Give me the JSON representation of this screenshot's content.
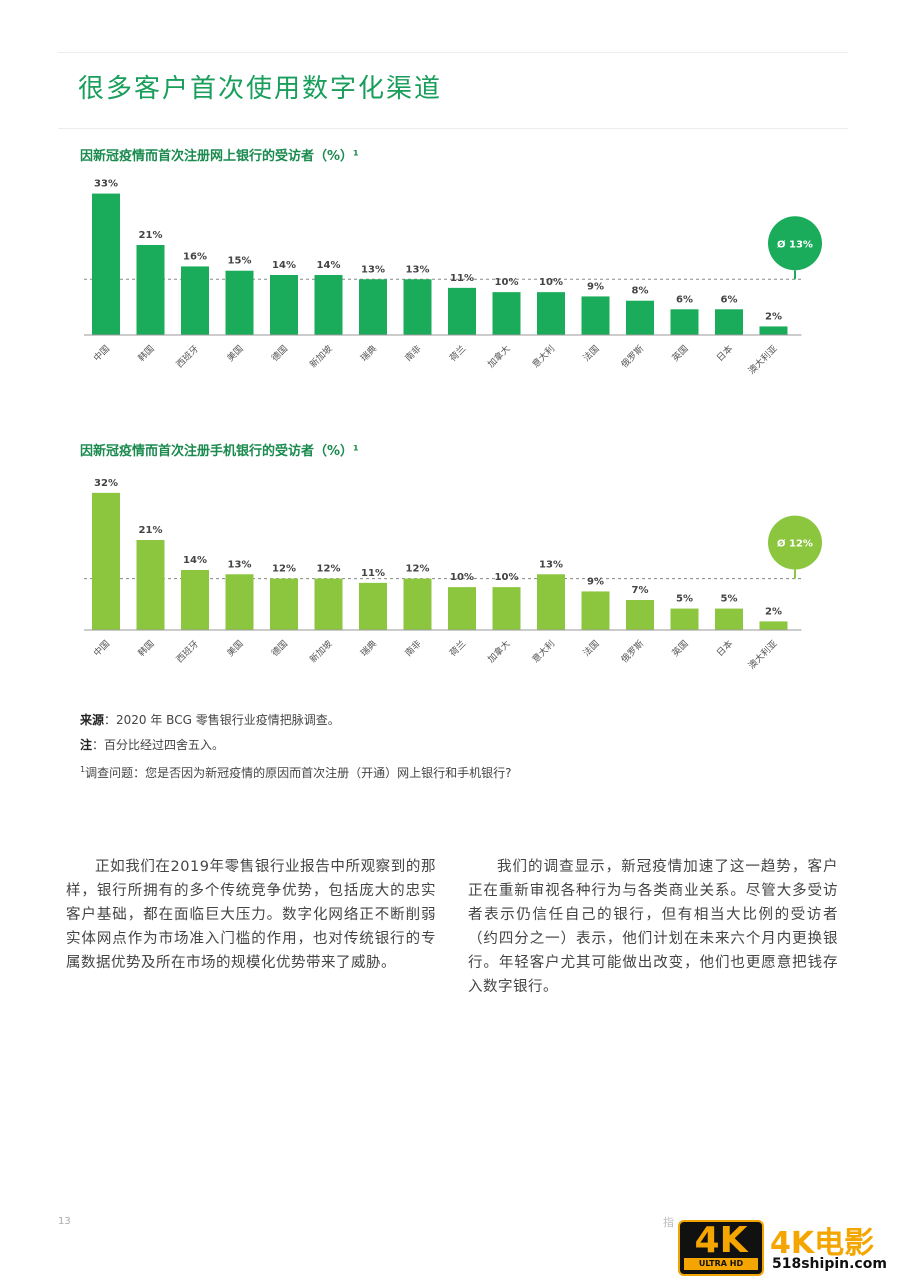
{
  "page": {
    "title": "很多客户首次使用数字化渠道",
    "page_number": "13"
  },
  "charts_meta": {
    "online": {
      "title": "因新冠疫情而首次注册网上银行的受访者（%）¹"
    },
    "mobile": {
      "title": "因新冠疫情而首次注册手机银行的受访者（%）¹"
    }
  },
  "chart_data": [
    {
      "type": "bar",
      "title": "因新冠疫情而首次注册网上银行的受访者（%）¹",
      "categories": [
        "中国",
        "韩国",
        "西班牙",
        "美国",
        "德国",
        "新加坡",
        "瑞典",
        "南非",
        "荷兰",
        "加拿大",
        "意大利",
        "法国",
        "俄罗斯",
        "英国",
        "日本",
        "澳大利亚"
      ],
      "values": [
        33,
        21,
        16,
        15,
        14,
        14,
        13,
        13,
        11,
        10,
        10,
        9,
        8,
        6,
        6,
        2
      ],
      "value_labels": [
        "33%",
        "21%",
        "16%",
        "15%",
        "14%",
        "14%",
        "13%",
        "13%",
        "11%",
        "10%",
        "10%",
        "9%",
        "8%",
        "6%",
        "6%",
        "2%"
      ],
      "average": 13,
      "average_label": "Ø 13%",
      "ylim": [
        0,
        35
      ],
      "color": "#1aac5a",
      "badge_color": "#1aac5a"
    },
    {
      "type": "bar",
      "title": "因新冠疫情而首次注册手机银行的受访者（%）¹",
      "categories": [
        "中国",
        "韩国",
        "西班牙",
        "美国",
        "德国",
        "新加坡",
        "瑞典",
        "南非",
        "荷兰",
        "加拿大",
        "意大利",
        "法国",
        "俄罗斯",
        "英国",
        "日本",
        "澳大利亚"
      ],
      "values": [
        32,
        21,
        14,
        13,
        12,
        12,
        11,
        12,
        10,
        10,
        13,
        9,
        7,
        5,
        5,
        2
      ],
      "value_labels": [
        "32%",
        "21%",
        "14%",
        "13%",
        "12%",
        "12%",
        "11%",
        "12%",
        "10%",
        "10%",
        "13%",
        "9%",
        "7%",
        "5%",
        "5%",
        "2%"
      ],
      "average": 12,
      "average_label": "Ø 12%",
      "ylim": [
        0,
        35
      ],
      "color": "#8cc63f",
      "badge_color": "#8cc63f"
    }
  ],
  "notes": {
    "source_label": "来源",
    "source_text": "：2020 年 BCG 零售银行业疫情把脉调查。",
    "note_label": "注",
    "note_text": "：百分比经过四舍五入。",
    "question_mark": "1",
    "question_text": "调查问题：您是否因为新冠疫情的原因而首次注册（开通）网上银行和手机银行?"
  },
  "body": {
    "left_paragraph": "正如我们在2019年零售银行业报告中所观察到的那样，银行所拥有的多个传统竞争优势，包括庞大的忠实客户基础，都在面临巨大压力。数字化网络正不断削弱实体网点作为市场准入门槛的作用，也对传统银行的专属数据优势及所在市场的规模化优势带来了威胁。",
    "right_paragraph": "我们的调查显示，新冠疫情加速了这一趋势，客户正在重新审视各种行为与各类商业关系。尽管大多受访者表示仍信任自己的银行，但有相当大比例的受访者（约四分之一）表示，他们计划在未来六个月内更换银行。年轻客户尤其可能做出改变，他们也更愿意把钱存入数字银行。"
  },
  "footer": {
    "text": "指",
    "watermark_badge_big": "4K",
    "watermark_badge_small": "ULTRA HD",
    "watermark_text": "4K电影",
    "watermark_url": "518shipin.com"
  }
}
